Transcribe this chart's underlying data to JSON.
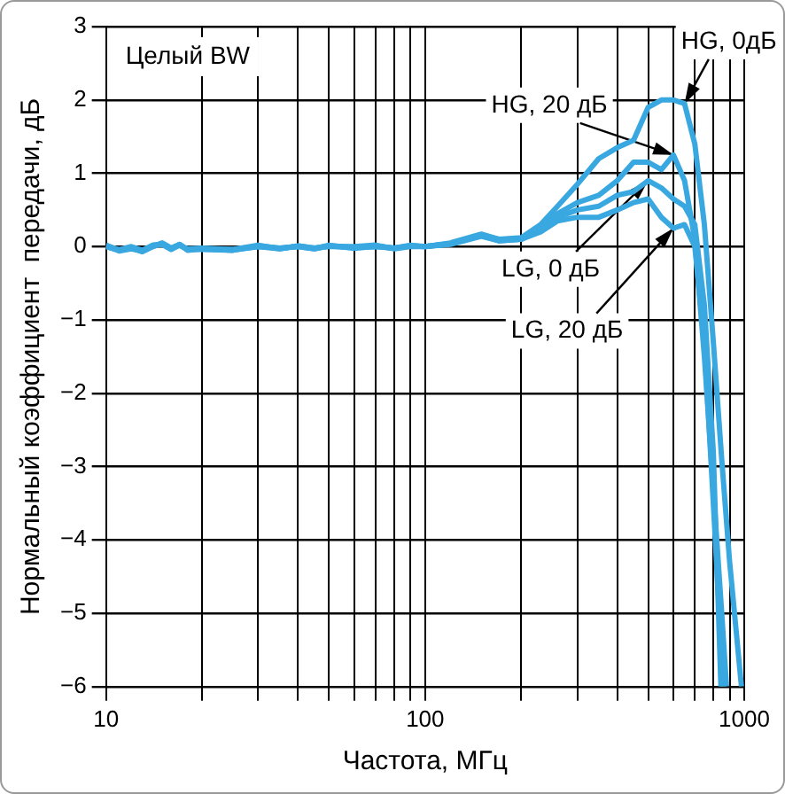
{
  "chart_data": {
    "type": "line",
    "xlabel": "Частота, МГц",
    "ylabel": "Нормальный коэффициент  передачи, дБ",
    "log": "x",
    "grid": true,
    "legend": false,
    "marker": "none",
    "line_style": "solid",
    "xlim": [
      10,
      1000
    ],
    "xticks": [
      10,
      {
        "value": 20,
        "label": null
      },
      {
        "value": 30,
        "label": null
      },
      {
        "value": 40,
        "label": null
      },
      {
        "value": 50,
        "label": null
      },
      {
        "value": 60,
        "label": null
      },
      {
        "value": 70,
        "label": null
      },
      {
        "value": 80,
        "label": null
      },
      {
        "value": 90,
        "label": null
      },
      100,
      {
        "value": 200,
        "label": null
      },
      {
        "value": 300,
        "label": null
      },
      {
        "value": 400,
        "label": null
      },
      {
        "value": 500,
        "label": null
      },
      {
        "value": 600,
        "label": null
      },
      {
        "value": 700,
        "label": null
      },
      {
        "value": 800,
        "label": null
      },
      {
        "value": 900,
        "label": null
      },
      1000
    ],
    "ylim": [
      -6,
      3
    ],
    "yticks": [
      {
        "value": -6,
        "label": "−6"
      },
      {
        "value": -5,
        "label": "−5"
      },
      {
        "value": -4,
        "label": "−4"
      },
      {
        "value": -3,
        "label": "−3"
      },
      {
        "value": -2,
        "label": "−2"
      },
      {
        "value": -1,
        "label": "−1"
      },
      0,
      1,
      2,
      3
    ],
    "annotations": [
      "Целый BW",
      {
        "text": "HG, 0дБ",
        "x": 650,
        "y": 1.95
      },
      {
        "text": "HG, 20 дБ",
        "x": 600,
        "y": 1.25
      },
      {
        "text": "LG, 0 дБ",
        "x": 500,
        "y": 0.9
      },
      {
        "text": "LG, 20 дБ",
        "x": 600,
        "y": 0.25
      }
    ],
    "series": [
      {
        "color": "#3aa8e0",
        "x": [
          10,
          11,
          12,
          13,
          14,
          15,
          16,
          17,
          18,
          20,
          25,
          30,
          35,
          40,
          45,
          50,
          60,
          70,
          80,
          90,
          100,
          120,
          150,
          170,
          200,
          230,
          260,
          300,
          350,
          400,
          450,
          500,
          550,
          600,
          650,
          700,
          750,
          800,
          850,
          900,
          980
        ],
        "values": [
          0.02,
          -0.05,
          -0.02,
          -0.07,
          0,
          0.05,
          -0.02,
          0.03,
          -0.05,
          -0.03,
          -0.05,
          0,
          -0.02,
          0,
          -0.03,
          0.02,
          -0.02,
          0,
          -0.02,
          0.02,
          0,
          0.05,
          0.17,
          0.1,
          0.12,
          0.3,
          0.55,
          0.85,
          1.2,
          1.35,
          1.45,
          1.9,
          2,
          2,
          1.95,
          1.4,
          0.3,
          -1.3,
          -2.9,
          -4.3,
          -6
        ]
      },
      {
        "color": "#3aa8e0",
        "x": [
          10,
          11,
          12,
          13,
          14,
          15,
          16,
          17,
          18,
          20,
          25,
          30,
          35,
          40,
          45,
          50,
          60,
          70,
          80,
          90,
          100,
          120,
          150,
          170,
          200,
          230,
          260,
          300,
          350,
          400,
          450,
          500,
          550,
          600,
          650,
          700,
          750,
          800,
          850,
          880
        ],
        "values": [
          0,
          -0.04,
          0,
          -0.05,
          0.02,
          0.03,
          -0.04,
          0.02,
          -0.03,
          -0.02,
          -0.04,
          0.02,
          -0.03,
          0.01,
          -0.02,
          0,
          0,
          0.02,
          -0.03,
          0,
          0,
          0.04,
          0.15,
          0.1,
          0.1,
          0.25,
          0.45,
          0.6,
          0.7,
          0.9,
          1.15,
          1.15,
          1.05,
          1.25,
          0.9,
          0.1,
          -1.5,
          -3.3,
          -5,
          -6
        ]
      },
      {
        "color": "#3aa8e0",
        "x": [
          10,
          11,
          12,
          13,
          14,
          15,
          16,
          17,
          18,
          20,
          25,
          30,
          35,
          40,
          45,
          50,
          60,
          70,
          80,
          90,
          100,
          120,
          150,
          170,
          200,
          230,
          260,
          300,
          350,
          400,
          450,
          500,
          550,
          600,
          650,
          700,
          750,
          800,
          845
        ],
        "values": [
          0.01,
          -0.06,
          -0.03,
          -0.06,
          0,
          0.04,
          -0.03,
          0.02,
          -0.04,
          -0.04,
          -0.05,
          0.01,
          -0.02,
          0,
          -0.03,
          0.01,
          -0.01,
          0,
          -0.02,
          0.01,
          0,
          0.04,
          0.15,
          0.08,
          0.1,
          0.22,
          0.4,
          0.5,
          0.55,
          0.7,
          0.75,
          0.9,
          0.8,
          0.65,
          0.55,
          0.3,
          -0.8,
          -2.8,
          -6
        ]
      },
      {
        "color": "#3aa8e0",
        "x": [
          10,
          11,
          12,
          13,
          14,
          15,
          16,
          17,
          18,
          20,
          25,
          30,
          35,
          40,
          45,
          50,
          60,
          70,
          80,
          90,
          100,
          120,
          150,
          170,
          200,
          230,
          260,
          300,
          350,
          400,
          450,
          500,
          550,
          600,
          650,
          700,
          750,
          800,
          860
        ],
        "values": [
          0,
          -0.05,
          -0.02,
          -0.06,
          0.01,
          0.04,
          -0.03,
          0.03,
          -0.04,
          -0.03,
          -0.04,
          0,
          -0.03,
          0.01,
          -0.02,
          0.01,
          -0.02,
          0.01,
          -0.02,
          0.01,
          0,
          0.03,
          0.14,
          0.08,
          0.1,
          0.2,
          0.35,
          0.4,
          0.4,
          0.5,
          0.6,
          0.65,
          0.4,
          0.25,
          0.3,
          0,
          -1.3,
          -3.5,
          -6
        ]
      }
    ]
  }
}
